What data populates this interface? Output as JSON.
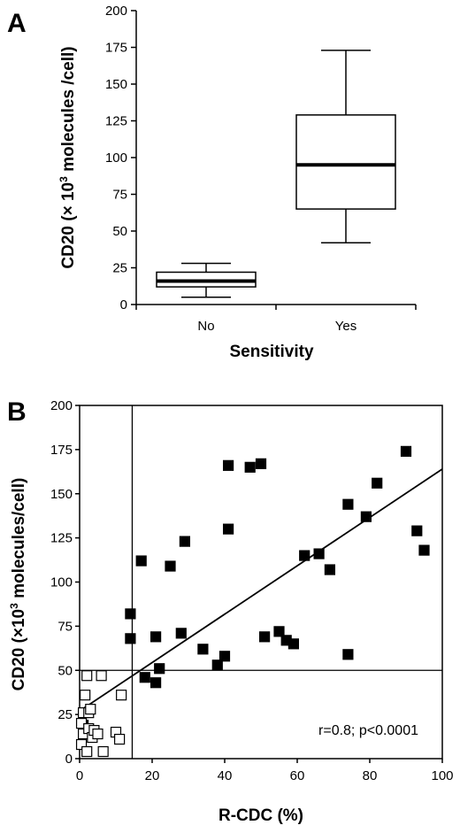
{
  "chart_data": [
    {
      "type": "boxplot",
      "panel_label": "A",
      "xlabel": "Sensitivity",
      "ylabel": "CD20 (× 10",
      "ylabel_sup": "3",
      "ylabel_suffix": " molecules /cell)",
      "ylim": [
        0,
        200
      ],
      "yticks": [
        "0",
        "25",
        "50",
        "75",
        "100",
        "125",
        "150",
        "175",
        "200"
      ],
      "categories": [
        "No",
        "Yes"
      ],
      "boxes": [
        {
          "category": "No",
          "min": 5,
          "q1": 12,
          "median": 16,
          "q3": 22,
          "max": 28
        },
        {
          "category": "Yes",
          "min": 42,
          "q1": 65,
          "median": 95,
          "q3": 129,
          "max": 173
        }
      ],
      "grid": false
    },
    {
      "type": "scatter",
      "panel_label": "B",
      "xlabel": "R-CDC (%)",
      "ylabel": "CD20 (×10",
      "ylabel_sup": "3",
      "ylabel_suffix": " molecules/cell)",
      "xlim": [
        0,
        100
      ],
      "ylim": [
        0,
        200
      ],
      "xticks": [
        "0",
        "20",
        "40",
        "60",
        "80",
        "100"
      ],
      "yticks": [
        "0",
        "25",
        "50",
        "75",
        "100",
        "125",
        "150",
        "175",
        "200"
      ],
      "annotation": "r=0.8; p<0.0001",
      "reference_lines": {
        "x": 14.5,
        "y": 50
      },
      "regression_line": {
        "x": [
          0,
          100
        ],
        "y": [
          27,
          164
        ]
      },
      "series": [
        {
          "marker": "filled-square",
          "points": [
            [
              1,
              19
            ],
            [
              14,
              82
            ],
            [
              14,
              68
            ],
            [
              17,
              112
            ],
            [
              18,
              46
            ],
            [
              21,
              43
            ],
            [
              21,
              69
            ],
            [
              22,
              51
            ],
            [
              25,
              109
            ],
            [
              28,
              71
            ],
            [
              29,
              123
            ],
            [
              34,
              62
            ],
            [
              38,
              53
            ],
            [
              40,
              58
            ],
            [
              41,
              166
            ],
            [
              41,
              130
            ],
            [
              47,
              165
            ],
            [
              50,
              167
            ],
            [
              51,
              69
            ],
            [
              55,
              72
            ],
            [
              57,
              67
            ],
            [
              59,
              65
            ],
            [
              62,
              115
            ],
            [
              66,
              116
            ],
            [
              69,
              107
            ],
            [
              74,
              144
            ],
            [
              74,
              59
            ],
            [
              79,
              137
            ],
            [
              82,
              156
            ],
            [
              90,
              174
            ],
            [
              93,
              129
            ],
            [
              95,
              118
            ]
          ]
        },
        {
          "marker": "open-square",
          "points": [
            [
              0.5,
              8
            ],
            [
              0.5,
              20
            ],
            [
              1,
              14
            ],
            [
              1,
              26
            ],
            [
              1.5,
              36
            ],
            [
              2,
              4
            ],
            [
              2,
              47
            ],
            [
              2.5,
              17
            ],
            [
              2.5,
              26
            ],
            [
              3,
              28
            ],
            [
              3.5,
              12
            ],
            [
              4,
              16
            ],
            [
              5,
              14
            ],
            [
              6,
              47
            ],
            [
              6.5,
              4
            ],
            [
              10,
              15
            ],
            [
              11,
              11
            ],
            [
              11.5,
              36
            ]
          ]
        }
      ]
    }
  ]
}
